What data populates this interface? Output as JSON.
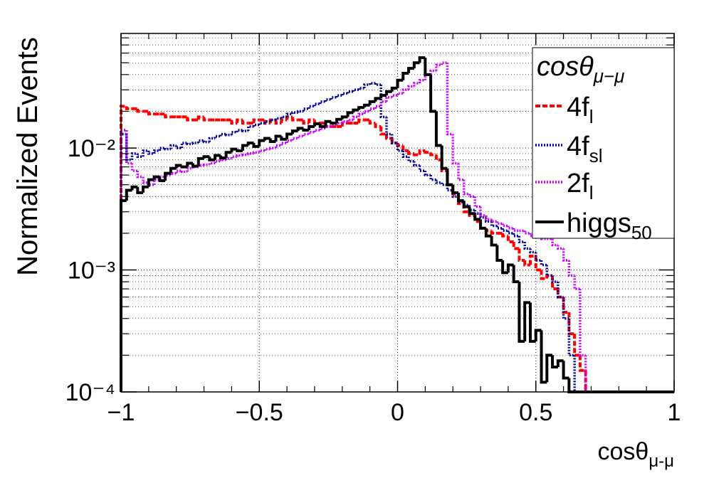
{
  "chart_data": {
    "type": "histogram",
    "y_label": "Normalized Events",
    "x_label": {
      "text": "cosθ",
      "subscript": "μ-μ"
    },
    "legend_title": {
      "text": "cosθ",
      "subscript": "μ−μ"
    },
    "legend": "top-right",
    "log_y": true,
    "grid": true,
    "xlim": [
      -1,
      1
    ],
    "ylim": [
      0.0001,
      0.087
    ],
    "xticks": [
      {
        "value": -1,
        "label": "−1"
      },
      {
        "value": -0.5,
        "label": "−0.5"
      },
      0,
      0.5,
      1
    ],
    "yticks": [
      {
        "value": 0.0001,
        "label": "10⁻⁴"
      },
      {
        "value": 0.001,
        "label": "10⁻³"
      },
      {
        "value": 0.01,
        "label": "10⁻²"
      }
    ],
    "bins": [
      -1,
      -0.98,
      -0.96,
      -0.94,
      -0.92,
      -0.9,
      -0.88,
      -0.86,
      -0.84,
      -0.82,
      -0.8,
      -0.78,
      -0.76,
      -0.74,
      -0.72,
      -0.7,
      -0.68,
      -0.66,
      -0.64,
      -0.62,
      -0.6,
      -0.58,
      -0.56,
      -0.54,
      -0.52,
      -0.5,
      -0.48,
      -0.46,
      -0.44,
      -0.42,
      -0.4,
      -0.38,
      -0.36,
      -0.34,
      -0.32,
      -0.3,
      -0.28,
      -0.26,
      -0.24,
      -0.22,
      -0.2,
      -0.18,
      -0.16,
      -0.14,
      -0.12,
      -0.1,
      -0.08,
      -0.06,
      -0.04,
      -0.02,
      0,
      0.02,
      0.04,
      0.06,
      0.08,
      0.1,
      0.12,
      0.14,
      0.16,
      0.18,
      0.2,
      0.22,
      0.24,
      0.26,
      0.28,
      0.3,
      0.32,
      0.34,
      0.36,
      0.38,
      0.4,
      0.42,
      0.44,
      0.46,
      0.48,
      0.5,
      0.52,
      0.54,
      0.56,
      0.58,
      0.6,
      0.62,
      0.64,
      0.66,
      0.68,
      0.7,
      0.72,
      0.74,
      0.76,
      0.78,
      0.8,
      0.82,
      0.84,
      0.86,
      0.88,
      0.9,
      0.92,
      0.94,
      0.96,
      0.98,
      1
    ],
    "series": [
      {
        "name": "4f",
        "subscript": "l",
        "color": "#ff0000",
        "style": "dashed",
        "values": [
          0.022,
          0.021,
          0.021,
          0.02,
          0.02,
          0.019,
          0.019,
          0.019,
          0.018,
          0.018,
          0.018,
          0.018,
          0.017,
          0.017,
          0.018,
          0.017,
          0.017,
          0.017,
          0.017,
          0.017,
          0.016,
          0.017,
          0.016,
          0.016,
          0.017,
          0.017,
          0.016,
          0.017,
          0.016,
          0.017,
          0.018,
          0.017,
          0.017,
          0.016,
          0.017,
          0.016,
          0.016,
          0.015,
          0.015,
          0.015,
          0.016,
          0.016,
          0.016,
          0.017,
          0.017,
          0.016,
          0.015,
          0.013,
          0.012,
          0.011,
          0.0105,
          0.0095,
          0.009,
          0.0088,
          0.0095,
          0.0092,
          0.0088,
          0.008,
          0.0065,
          0.005,
          0.0042,
          0.0035,
          0.003,
          0.0028,
          0.0025,
          0.0022,
          0.0021,
          0.002,
          0.002,
          0.0019,
          0.0017,
          0.0015,
          0.0012,
          0.0011,
          0.0013,
          0.001,
          0.00085,
          0.0009,
          0.0007,
          0.0006,
          0.00045,
          0.0003,
          0.0002,
          0.00015,
          0,
          0,
          0,
          0,
          0,
          0,
          0,
          0,
          0,
          0,
          0,
          0,
          0,
          0,
          0,
          0
        ]
      },
      {
        "name": "4f",
        "subscript": "sl",
        "color": "#000099",
        "style": "dotted",
        "values": [
          0.013,
          0.008,
          0.009,
          0.0085,
          0.0095,
          0.009,
          0.0095,
          0.01,
          0.0098,
          0.0105,
          0.01,
          0.011,
          0.0108,
          0.011,
          0.0115,
          0.0112,
          0.012,
          0.0125,
          0.013,
          0.0128,
          0.0135,
          0.014,
          0.0138,
          0.015,
          0.0155,
          0.016,
          0.0165,
          0.017,
          0.0175,
          0.018,
          0.019,
          0.0195,
          0.02,
          0.021,
          0.022,
          0.023,
          0.024,
          0.025,
          0.026,
          0.027,
          0.028,
          0.029,
          0.03,
          0.031,
          0.033,
          0.034,
          0.033,
          0.018,
          0.013,
          0.011,
          0.0095,
          0.0085,
          0.0078,
          0.0072,
          0.0065,
          0.006,
          0.0055,
          0.0052,
          0.005,
          0.0045,
          0.004,
          0.0036,
          0.0034,
          0.0031,
          0.0029,
          0.0027,
          0.0025,
          0.0023,
          0.0022,
          0.0021,
          0.002,
          0.0019,
          0.0017,
          0.0015,
          0.0014,
          0.0012,
          0.0011,
          0.0009,
          0.0008,
          0.0006,
          0.0004,
          0.0002,
          0,
          0,
          0,
          0,
          0,
          0,
          0,
          0,
          0,
          0,
          0,
          0,
          0,
          0,
          0,
          0,
          0,
          0
        ]
      },
      {
        "name": "2f",
        "subscript": "l",
        "color": "#cc00ff",
        "style": "dotted",
        "values": [
          0.014,
          0.0075,
          0.0065,
          0.0058,
          0.0052,
          0.005,
          0.0055,
          0.0058,
          0.006,
          0.0062,
          0.0065,
          0.0064,
          0.0068,
          0.007,
          0.0072,
          0.0073,
          0.0075,
          0.0078,
          0.008,
          0.0082,
          0.0085,
          0.0087,
          0.0088,
          0.009,
          0.0092,
          0.0095,
          0.0098,
          0.01,
          0.0105,
          0.011,
          0.0115,
          0.012,
          0.0125,
          0.013,
          0.0135,
          0.014,
          0.0145,
          0.015,
          0.0155,
          0.016,
          0.0165,
          0.017,
          0.018,
          0.019,
          0.02,
          0.021,
          0.022,
          0.024,
          0.026,
          0.027,
          0.028,
          0.03,
          0.032,
          0.034,
          0.036,
          0.04,
          0.043,
          0.048,
          0.05,
          0.013,
          0.0075,
          0.0055,
          0.0042,
          0.004,
          0.0033,
          0.0028,
          0.0026,
          0.0025,
          0.0024,
          0.0023,
          0.0022,
          0.0021,
          0.0021,
          0.002,
          0.0019,
          0.0019,
          0.0018,
          0.0018,
          0.0016,
          0.0015,
          0.0012,
          0.0009,
          0.0007,
          0.0002,
          0,
          0,
          0,
          0,
          0,
          0,
          0,
          0,
          0,
          0,
          0,
          0,
          0,
          0,
          0,
          0
        ]
      },
      {
        "name": "higgs",
        "subscript": "50",
        "color": "#000000",
        "style": "solid",
        "values": [
          0.0037,
          0.0045,
          0.0048,
          0.0043,
          0.0048,
          0.0055,
          0.0058,
          0.0054,
          0.0062,
          0.0068,
          0.0072,
          0.007,
          0.0075,
          0.0071,
          0.0082,
          0.0085,
          0.008,
          0.0087,
          0.0083,
          0.0092,
          0.0098,
          0.0095,
          0.0105,
          0.011,
          0.0103,
          0.0115,
          0.012,
          0.0113,
          0.0125,
          0.0118,
          0.013,
          0.0138,
          0.0145,
          0.014,
          0.015,
          0.0158,
          0.015,
          0.0165,
          0.016,
          0.0172,
          0.018,
          0.0195,
          0.0205,
          0.0215,
          0.0225,
          0.024,
          0.0255,
          0.027,
          0.029,
          0.031,
          0.036,
          0.041,
          0.045,
          0.05,
          0.055,
          0.04,
          0.02,
          0.0105,
          0.0068,
          0.005,
          0.0043,
          0.0037,
          0.0033,
          0.0029,
          0.0026,
          0.0022,
          0.0019,
          0.0016,
          0.0012,
          0.00095,
          0.0011,
          0.0008,
          0.00026,
          0.00054,
          0.00026,
          0.00032,
          0.00012,
          0.0002,
          0.00016,
          0.00018,
          0.00013,
          0,
          0,
          0,
          0,
          0,
          0,
          0,
          0,
          0,
          0,
          0,
          0,
          0,
          0,
          0,
          0,
          0,
          0,
          0
        ]
      }
    ]
  }
}
